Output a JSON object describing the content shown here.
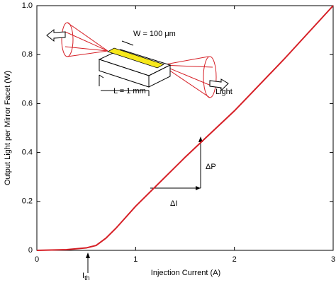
{
  "chart_data": {
    "type": "line",
    "x_label": "Injection Current (A)",
    "y_label": "Output Light per Mirror Facet (W)",
    "x": [
      0,
      0.3,
      0.5,
      0.6,
      0.7,
      0.8,
      1,
      1.5,
      2,
      2.5,
      3
    ],
    "values": [
      0,
      0.003,
      0.01,
      0.02,
      0.05,
      0.09,
      0.18,
      0.38,
      0.57,
      0.78,
      1.0
    ],
    "color": "#d61f26",
    "xlim": [
      0,
      3
    ],
    "xticks": [
      0,
      1,
      2,
      3
    ],
    "ylim": [
      0,
      1
    ],
    "yticks": [
      0,
      0.2,
      0.4,
      0.6,
      0.8,
      {
        "value": 1,
        "label": "1.0"
      }
    ],
    "annotations": {
      "width": "W = 100 μm",
      "length": "L = 1 mm",
      "light": "Light",
      "delta_p": "ΔP",
      "delta_i": "ΔI",
      "threshold": "I",
      "threshold_sub": "th"
    }
  }
}
